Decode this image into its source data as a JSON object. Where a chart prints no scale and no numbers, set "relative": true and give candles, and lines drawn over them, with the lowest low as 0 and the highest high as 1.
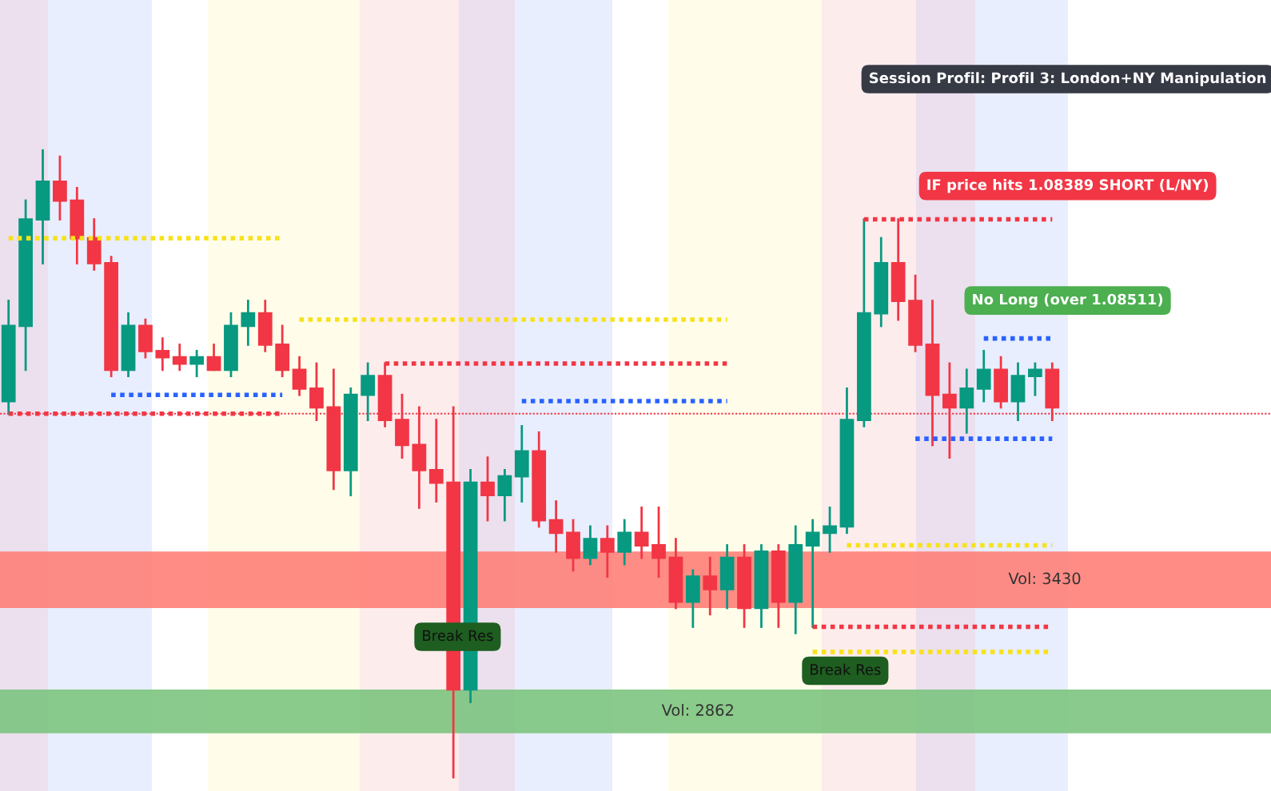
{
  "chart_data": {
    "type": "candlestick",
    "relative": true,
    "legend": false,
    "categories": [
      null,
      null,
      null,
      null,
      null,
      null,
      null,
      null,
      null,
      null,
      null,
      null,
      null,
      null,
      null,
      null,
      null,
      null,
      null,
      null,
      null,
      null,
      null,
      null,
      null,
      null,
      null,
      null,
      null,
      null,
      null,
      null,
      null,
      null,
      null,
      null,
      null,
      null,
      null,
      null,
      null,
      null,
      null,
      null,
      null,
      null,
      null,
      null,
      null,
      null,
      null,
      null,
      null,
      null,
      null,
      null,
      null,
      null,
      null,
      null,
      null,
      null
    ],
    "ohlc": [
      [
        0.6,
        0.76,
        0.58,
        0.72
      ],
      [
        0.72,
        0.92,
        0.65,
        0.89
      ],
      [
        0.89,
        1.0,
        0.82,
        0.95
      ],
      [
        0.95,
        0.99,
        0.89,
        0.92
      ],
      [
        0.92,
        0.94,
        0.82,
        0.86
      ],
      [
        0.86,
        0.89,
        0.81,
        0.82
      ],
      [
        0.82,
        0.83,
        0.64,
        0.65
      ],
      [
        0.65,
        0.74,
        0.64,
        0.72
      ],
      [
        0.72,
        0.73,
        0.67,
        0.68
      ],
      [
        0.68,
        0.7,
        0.65,
        0.67
      ],
      [
        0.67,
        0.69,
        0.65,
        0.66
      ],
      [
        0.66,
        0.68,
        0.64,
        0.67
      ],
      [
        0.67,
        0.69,
        0.65,
        0.65
      ],
      [
        0.65,
        0.74,
        0.64,
        0.72
      ],
      [
        0.72,
        0.76,
        0.69,
        0.74
      ],
      [
        0.74,
        0.76,
        0.68,
        0.69
      ],
      [
        0.69,
        0.72,
        0.64,
        0.65
      ],
      [
        0.65,
        0.67,
        0.61,
        0.62
      ],
      [
        0.62,
        0.66,
        0.57,
        0.59
      ],
      [
        0.59,
        0.65,
        0.46,
        0.49
      ],
      [
        0.49,
        0.62,
        0.45,
        0.61
      ],
      [
        0.61,
        0.66,
        0.57,
        0.64
      ],
      [
        0.64,
        0.66,
        0.56,
        0.57
      ],
      [
        0.57,
        0.61,
        0.51,
        0.53
      ],
      [
        0.53,
        0.59,
        0.43,
        0.49
      ],
      [
        0.49,
        0.57,
        0.44,
        0.47
      ],
      [
        0.47,
        0.59,
        0.0,
        0.14
      ],
      [
        0.14,
        0.49,
        0.12,
        0.47
      ],
      [
        0.47,
        0.51,
        0.41,
        0.45
      ],
      [
        0.45,
        0.49,
        0.41,
        0.48
      ],
      [
        0.48,
        0.56,
        0.44,
        0.52
      ],
      [
        0.52,
        0.55,
        0.4,
        0.41
      ],
      [
        0.41,
        0.44,
        0.36,
        0.39
      ],
      [
        0.39,
        0.41,
        0.33,
        0.35
      ],
      [
        0.35,
        0.4,
        0.34,
        0.38
      ],
      [
        0.38,
        0.4,
        0.32,
        0.36
      ],
      [
        0.36,
        0.41,
        0.34,
        0.39
      ],
      [
        0.39,
        0.43,
        0.35,
        0.37
      ],
      [
        0.37,
        0.43,
        0.32,
        0.35
      ],
      [
        0.35,
        0.38,
        0.27,
        0.28
      ],
      [
        0.28,
        0.33,
        0.24,
        0.32
      ],
      [
        0.32,
        0.35,
        0.26,
        0.3
      ],
      [
        0.3,
        0.37,
        0.27,
        0.35
      ],
      [
        0.35,
        0.37,
        0.24,
        0.27
      ],
      [
        0.27,
        0.37,
        0.24,
        0.36
      ],
      [
        0.36,
        0.37,
        0.24,
        0.28
      ],
      [
        0.28,
        0.4,
        0.23,
        0.37
      ],
      [
        0.37,
        0.41,
        0.24,
        0.39
      ],
      [
        0.39,
        0.43,
        0.36,
        0.4
      ],
      [
        0.4,
        0.62,
        0.39,
        0.57
      ],
      [
        0.57,
        0.89,
        0.56,
        0.74
      ],
      [
        0.74,
        0.86,
        0.72,
        0.82
      ],
      [
        0.82,
        0.89,
        0.73,
        0.76
      ],
      [
        0.76,
        0.8,
        0.68,
        0.69
      ],
      [
        0.69,
        0.76,
        0.53,
        0.61
      ],
      [
        0.61,
        0.66,
        0.51,
        0.59
      ],
      [
        0.59,
        0.65,
        0.55,
        0.62
      ],
      [
        0.62,
        0.68,
        0.6,
        0.65
      ],
      [
        0.65,
        0.67,
        0.59,
        0.6
      ],
      [
        0.6,
        0.66,
        0.57,
        0.64
      ],
      [
        0.64,
        0.66,
        0.61,
        0.65
      ],
      [
        0.65,
        0.66,
        0.57,
        0.59
      ]
    ],
    "series": [
      {
        "type": "line",
        "color": "#f7e21b",
        "line_style": "dotted",
        "values": [
          0.86,
          0.86,
          0.86,
          0.86,
          0.86,
          0.86,
          0.86,
          0.86,
          0.86,
          0.86,
          0.86,
          0.86,
          0.86,
          0.86,
          0.86,
          0.86,
          0.86,
          null,
          null,
          null,
          null,
          null,
          null,
          null,
          null,
          null,
          null,
          null,
          null,
          null,
          null,
          null,
          null,
          null,
          null,
          null,
          null,
          null,
          null,
          null,
          null,
          null,
          null,
          null,
          null,
          null,
          null,
          null,
          null,
          null,
          null,
          null,
          null,
          null,
          null,
          null,
          null,
          null,
          null,
          null,
          null,
          null
        ]
      },
      {
        "type": "line",
        "color": "#f23645",
        "line_style": "dotted",
        "values": [
          0.58,
          0.58,
          0.58,
          0.58,
          0.58,
          0.58,
          0.58,
          0.58,
          0.58,
          0.58,
          0.58,
          0.58,
          0.58,
          0.58,
          0.58,
          0.58,
          0.58,
          null,
          null,
          null,
          null,
          null,
          null,
          null,
          null,
          null,
          null,
          null,
          null,
          null,
          null,
          null,
          null,
          null,
          null,
          null,
          null,
          null,
          null,
          null,
          null,
          null,
          null,
          null,
          null,
          null,
          null,
          null,
          null,
          null,
          null,
          null,
          null,
          null,
          null,
          null,
          null,
          null,
          null,
          null,
          null,
          null
        ]
      },
      {
        "type": "line",
        "color": "#2962ff",
        "line_style": "dotted",
        "values": [
          null,
          null,
          null,
          null,
          null,
          null,
          0.61,
          0.61,
          0.61,
          0.61,
          0.61,
          0.61,
          0.61,
          0.61,
          0.61,
          0.61,
          0.61,
          null,
          null,
          null,
          null,
          null,
          null,
          null,
          null,
          null,
          null,
          null,
          null,
          null,
          null,
          null,
          null,
          null,
          null,
          null,
          null,
          null,
          null,
          null,
          null,
          null,
          null,
          null,
          null,
          null,
          null,
          null,
          null,
          null,
          null,
          null,
          null,
          null,
          null,
          null,
          null,
          null,
          null,
          null,
          null,
          null
        ]
      },
      {
        "type": "line",
        "color": "#f7e21b",
        "line_style": "dotted",
        "values": [
          null,
          null,
          null,
          null,
          null,
          null,
          null,
          null,
          null,
          null,
          null,
          null,
          null,
          null,
          null,
          null,
          null,
          0.73,
          0.73,
          0.73,
          0.73,
          0.73,
          0.73,
          0.73,
          0.73,
          0.73,
          0.73,
          0.73,
          0.73,
          0.73,
          0.73,
          0.73,
          0.73,
          0.73,
          0.73,
          0.73,
          0.73,
          0.73,
          0.73,
          0.73,
          0.73,
          0.73,
          0.73,
          null,
          null,
          null,
          null,
          null,
          null,
          null,
          null,
          null,
          null,
          null,
          null,
          null,
          null,
          null,
          null,
          null,
          null,
          null
        ]
      },
      {
        "type": "line",
        "color": "#f23645",
        "line_style": "dotted",
        "values": [
          null,
          null,
          null,
          null,
          null,
          null,
          null,
          null,
          null,
          null,
          null,
          null,
          null,
          null,
          null,
          null,
          null,
          null,
          null,
          null,
          null,
          null,
          0.66,
          0.66,
          0.66,
          0.66,
          0.66,
          0.66,
          0.66,
          0.66,
          0.66,
          0.66,
          0.66,
          0.66,
          0.66,
          0.66,
          0.66,
          0.66,
          0.66,
          0.66,
          0.66,
          0.66,
          0.66,
          null,
          null,
          null,
          null,
          null,
          null,
          null,
          null,
          null,
          null,
          null,
          null,
          null,
          null,
          null,
          null,
          null,
          null,
          null
        ]
      },
      {
        "type": "line",
        "color": "#2962ff",
        "line_style": "dotted",
        "values": [
          null,
          null,
          null,
          null,
          null,
          null,
          null,
          null,
          null,
          null,
          null,
          null,
          null,
          null,
          null,
          null,
          null,
          null,
          null,
          null,
          null,
          null,
          null,
          null,
          null,
          null,
          null,
          null,
          null,
          null,
          0.6,
          0.6,
          0.6,
          0.6,
          0.6,
          0.6,
          0.6,
          0.6,
          0.6,
          0.6,
          0.6,
          0.6,
          0.6,
          null,
          null,
          null,
          null,
          null,
          null,
          null,
          null,
          null,
          null,
          null,
          null,
          null,
          null,
          null,
          null,
          null,
          null,
          null
        ]
      },
      {
        "type": "line",
        "color": "#f23645",
        "line_style": "dotted",
        "values": [
          null,
          null,
          null,
          null,
          null,
          null,
          null,
          null,
          null,
          null,
          null,
          null,
          null,
          null,
          null,
          null,
          null,
          null,
          null,
          null,
          null,
          null,
          null,
          null,
          null,
          null,
          null,
          null,
          null,
          null,
          null,
          null,
          null,
          null,
          null,
          null,
          null,
          null,
          null,
          null,
          null,
          null,
          null,
          null,
          null,
          null,
          null,
          null,
          null,
          null,
          0.89,
          0.89,
          0.89,
          0.89,
          0.89,
          0.89,
          0.89,
          0.89,
          0.89,
          0.89,
          0.89,
          0.89
        ]
      },
      {
        "type": "line",
        "color": "#2962ff",
        "line_style": "dotted",
        "values": [
          null,
          null,
          null,
          null,
          null,
          null,
          null,
          null,
          null,
          null,
          null,
          null,
          null,
          null,
          null,
          null,
          null,
          null,
          null,
          null,
          null,
          null,
          null,
          null,
          null,
          null,
          null,
          null,
          null,
          null,
          null,
          null,
          null,
          null,
          null,
          null,
          null,
          null,
          null,
          null,
          null,
          null,
          null,
          null,
          null,
          null,
          null,
          null,
          null,
          null,
          null,
          null,
          null,
          0.54,
          0.54,
          0.54,
          0.54,
          0.54,
          0.54,
          0.54,
          0.54,
          0.54
        ]
      },
      {
        "type": "line",
        "color": "#2962ff",
        "line_style": "dotted",
        "values": [
          null,
          null,
          null,
          null,
          null,
          null,
          null,
          null,
          null,
          null,
          null,
          null,
          null,
          null,
          null,
          null,
          null,
          null,
          null,
          null,
          null,
          null,
          null,
          null,
          null,
          null,
          null,
          null,
          null,
          null,
          null,
          null,
          null,
          null,
          null,
          null,
          null,
          null,
          null,
          null,
          null,
          null,
          null,
          null,
          null,
          null,
          null,
          null,
          null,
          null,
          null,
          null,
          null,
          null,
          null,
          null,
          null,
          0.7,
          0.7,
          0.7,
          0.7,
          0.7
        ]
      },
      {
        "type": "line",
        "color": "#f7e21b",
        "line_style": "dotted",
        "values": [
          null,
          null,
          null,
          null,
          null,
          null,
          null,
          null,
          null,
          null,
          null,
          null,
          null,
          null,
          null,
          null,
          null,
          null,
          null,
          null,
          null,
          null,
          null,
          null,
          null,
          null,
          null,
          null,
          null,
          null,
          null,
          null,
          null,
          null,
          null,
          null,
          null,
          null,
          null,
          null,
          null,
          null,
          null,
          null,
          null,
          null,
          null,
          null,
          null,
          0.37,
          0.37,
          0.37,
          0.37,
          0.37,
          0.37,
          0.37,
          0.37,
          0.37,
          0.37,
          0.37,
          0.37,
          0.37
        ]
      },
      {
        "type": "line",
        "color": "#f23645",
        "line_style": "dotted",
        "values": [
          null,
          null,
          null,
          null,
          null,
          null,
          null,
          null,
          null,
          null,
          null,
          null,
          null,
          null,
          null,
          null,
          null,
          null,
          null,
          null,
          null,
          null,
          null,
          null,
          null,
          null,
          null,
          null,
          null,
          null,
          null,
          null,
          null,
          null,
          null,
          null,
          null,
          null,
          null,
          null,
          null,
          null,
          null,
          null,
          null,
          null,
          null,
          0.24,
          0.24,
          0.24,
          0.24,
          0.24,
          0.24,
          0.24,
          0.24,
          0.24,
          0.24,
          0.24,
          0.24,
          0.24,
          0.24,
          0.24
        ]
      },
      {
        "type": "line",
        "color": "#f7e21b",
        "line_style": "dotted",
        "values": [
          null,
          null,
          null,
          null,
          null,
          null,
          null,
          null,
          null,
          null,
          null,
          null,
          null,
          null,
          null,
          null,
          null,
          null,
          null,
          null,
          null,
          null,
          null,
          null,
          null,
          null,
          null,
          null,
          null,
          null,
          null,
          null,
          null,
          null,
          null,
          null,
          null,
          null,
          null,
          null,
          null,
          null,
          null,
          null,
          null,
          null,
          null,
          0.2,
          0.2,
          0.2,
          0.2,
          0.2,
          0.2,
          0.2,
          0.2,
          0.2,
          0.2,
          0.2,
          0.2,
          0.2,
          0.2,
          0.2
        ]
      }
    ],
    "ref_lines": [
      {
        "axis": "y",
        "value": 0.58,
        "color": "#f23645",
        "line_style": "dotted"
      }
    ],
    "bands": [
      {
        "axis": "y",
        "from": 0.27,
        "to": 0.36,
        "color": "#ff8078",
        "label": "Vol: 3430"
      },
      {
        "axis": "y",
        "from": 0.07,
        "to": 0.14,
        "color": "#7dc47f",
        "label": "Vol: 2862"
      }
    ],
    "annotations": [
      "Session Profil: Profil 3: London+NY Manipulation",
      "IF price hits 1.08389 SHORT (L/NY)",
      "No Long (over 1.08511)",
      "Break Res",
      "Break Res"
    ]
  }
}
